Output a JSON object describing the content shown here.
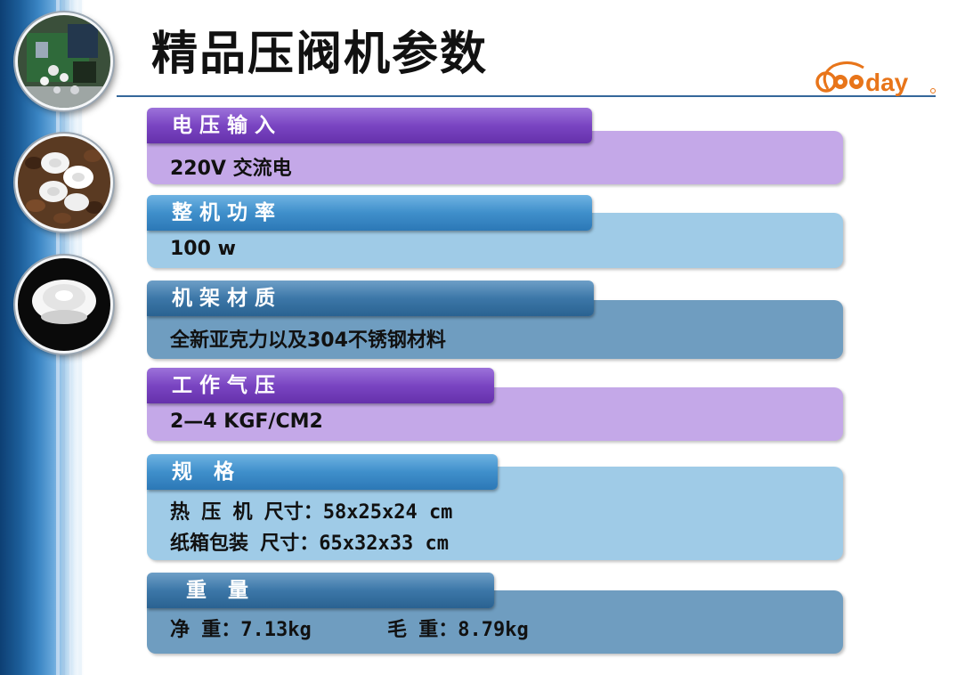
{
  "page": {
    "title": "精品压阀机参数"
  },
  "logo": {
    "text": "Gooday",
    "color": "#e8751a"
  },
  "colors": {
    "purple": "#7a45c2",
    "blue": "#3f8fcb",
    "steel": "#3c77a8"
  },
  "specs": [
    {
      "label": "电压输入",
      "value": "220V 交流电"
    },
    {
      "label": "整机功率",
      "value": "100 w"
    },
    {
      "label": "机架材质",
      "value": "全新亚克力以及304不锈钢材料"
    },
    {
      "label": "工作气压",
      "value": "2—4  KGF/CM2"
    },
    {
      "label": "规 格",
      "line1": "热 压 机 尺寸：58x25x24 cm",
      "line2": "纸箱包装 尺寸：65x32x33 cm"
    },
    {
      "label": "重 量",
      "net": "净 重：7.13kg",
      "gross": "毛 重：8.79kg"
    }
  ]
}
